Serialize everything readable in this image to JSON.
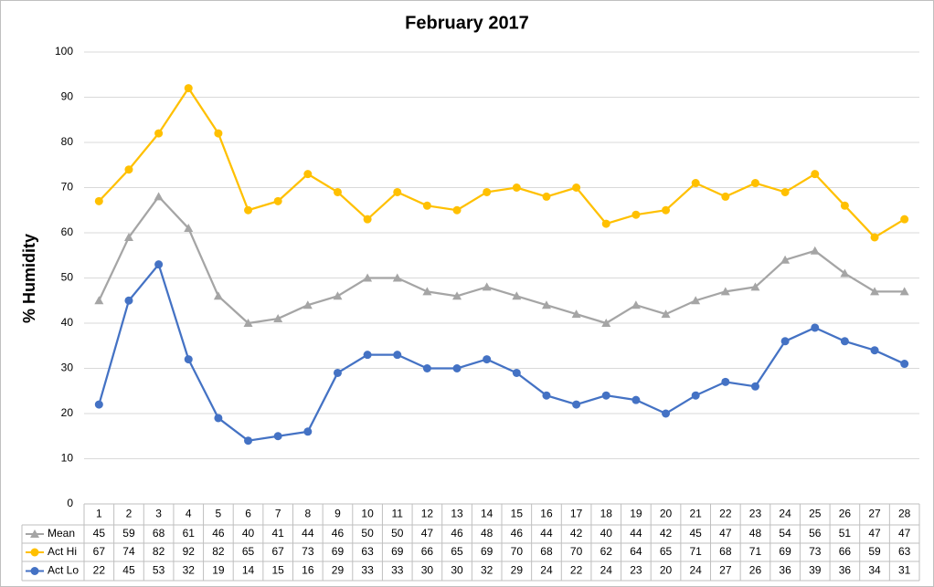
{
  "chart_data": {
    "type": "line",
    "title": "February 2017",
    "y_label": "% Humidity",
    "categories": [
      1,
      2,
      3,
      4,
      5,
      6,
      7,
      8,
      9,
      10,
      11,
      12,
      13,
      14,
      15,
      16,
      17,
      18,
      19,
      20,
      21,
      22,
      23,
      24,
      25,
      26,
      27,
      28
    ],
    "series": [
      {
        "name": "Mean",
        "color": "#a5a5a5",
        "marker": "triangle",
        "values": [
          45,
          59,
          68,
          61,
          46,
          40,
          41,
          44,
          46,
          50,
          50,
          47,
          46,
          48,
          46,
          44,
          42,
          40,
          44,
          42,
          45,
          47,
          48,
          54,
          56,
          51,
          47,
          47
        ]
      },
      {
        "name": "Act Hi",
        "color": "#ffc000",
        "marker": "circle",
        "values": [
          67,
          74,
          82,
          92,
          82,
          65,
          67,
          73,
          69,
          63,
          69,
          66,
          65,
          69,
          70,
          68,
          70,
          62,
          64,
          65,
          71,
          68,
          71,
          69,
          73,
          66,
          59,
          63
        ]
      },
      {
        "name": "Act Lo",
        "color": "#4472c4",
        "marker": "circle",
        "values": [
          22,
          45,
          53,
          32,
          19,
          14,
          15,
          16,
          29,
          33,
          33,
          30,
          30,
          32,
          29,
          24,
          22,
          24,
          23,
          20,
          24,
          27,
          26,
          36,
          39,
          36,
          34,
          31
        ]
      }
    ],
    "ylim": [
      0,
      100
    ],
    "yticks": [
      0,
      10,
      20,
      30,
      40,
      50,
      60,
      70,
      80,
      90,
      100
    ],
    "grid": true
  }
}
